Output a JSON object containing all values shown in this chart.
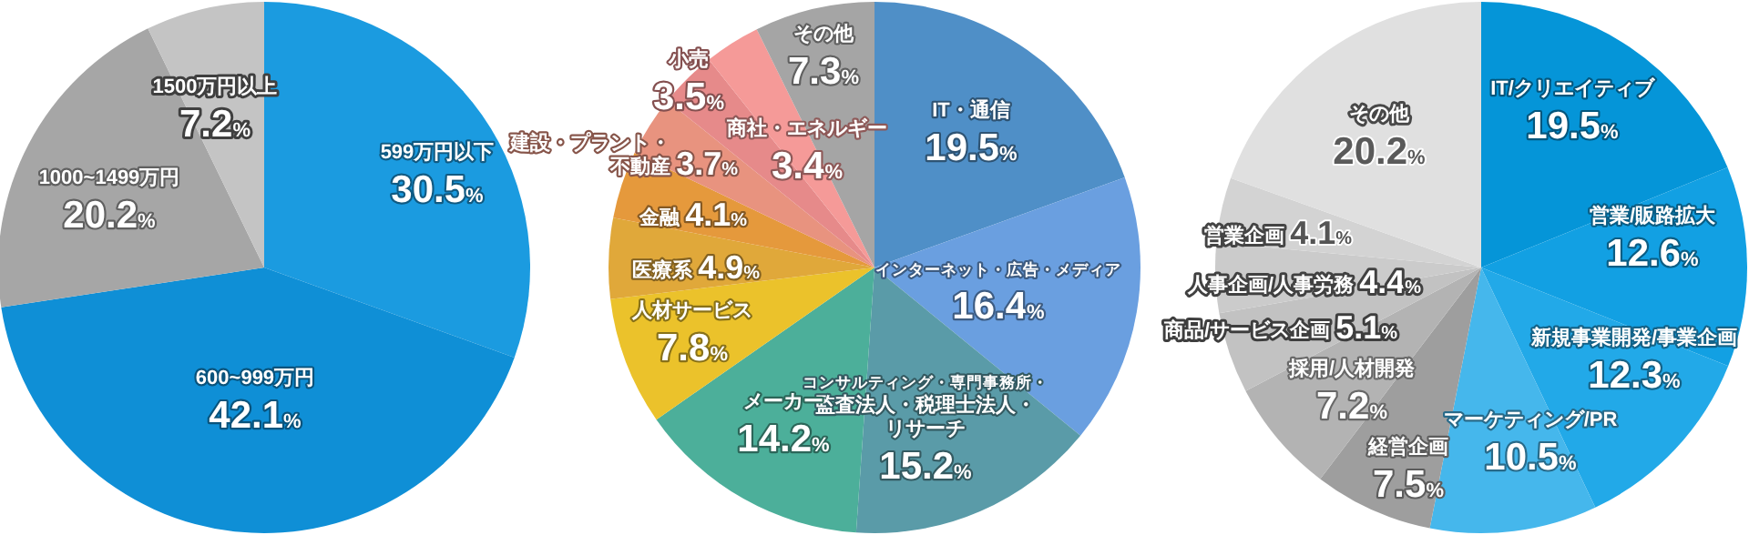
{
  "chart_data": [
    {
      "type": "pie",
      "categories": [
        "599万円以下",
        "600~999万円",
        "1000~1499万円",
        "1500万円以上"
      ],
      "values": [
        30.5,
        42.1,
        20.2,
        7.2
      ],
      "colors": [
        "#1b9be0",
        "#0f8fd6",
        "#a6a6a6",
        "#c4c4c4"
      ],
      "value_labels": [
        "30.5%",
        "42.1%",
        "20.2%",
        "7.2%"
      ]
    },
    {
      "type": "pie",
      "categories": [
        "IT・通信",
        "インターネット・広告・メディア",
        "コンサルティング・専門事務所・監査法人・税理士法人・リサーチ",
        "メーカー",
        "人材サービス",
        "医療系",
        "金融",
        "建設・プラント・不動産",
        "小売",
        "商社・エネルギー",
        "その他"
      ],
      "values": [
        19.5,
        16.4,
        15.2,
        14.2,
        7.8,
        4.9,
        4.1,
        3.7,
        3.5,
        3.4,
        7.3
      ],
      "colors": [
        "#4f8fc7",
        "#6a9fe0",
        "#5a9ba8",
        "#4caf9a",
        "#ebc22b",
        "#e0a83a",
        "#e5993c",
        "#e8937f",
        "#e68a8a",
        "#f59a98",
        "#a5a5a5"
      ],
      "value_labels": [
        "19.5%",
        "16.4%",
        "15.2%",
        "14.2%",
        "7.8%",
        "4.9%",
        "4.1%",
        "3.7%",
        "3.5%",
        "3.4%",
        "7.3%"
      ]
    },
    {
      "type": "pie",
      "categories": [
        "IT/クリエイティブ",
        "営業/販路拡大",
        "新規事業開発/事業企画",
        "マーケティング/PR",
        "経営企画",
        "採用/人材開発",
        "商品/サービス企画",
        "人事企画/人事労務",
        "営業企画",
        "その他"
      ],
      "values": [
        19.5,
        12.6,
        12.3,
        10.5,
        7.5,
        7.2,
        5.1,
        4.4,
        4.1,
        20.2
      ],
      "colors": [
        "#0595d8",
        "#12a0e3",
        "#22a9e8",
        "#45b7ec",
        "#9e9e9e",
        "#b3b3b3",
        "#c2c2c2",
        "#cbcbcb",
        "#d3d3d3",
        "#e0e0e0"
      ],
      "value_labels": [
        "19.5%",
        "12.6%",
        "12.3%",
        "10.5%",
        "7.5%",
        "7.2%",
        "5.1%",
        "4.4%",
        "4.1%",
        "20.2%"
      ]
    }
  ]
}
